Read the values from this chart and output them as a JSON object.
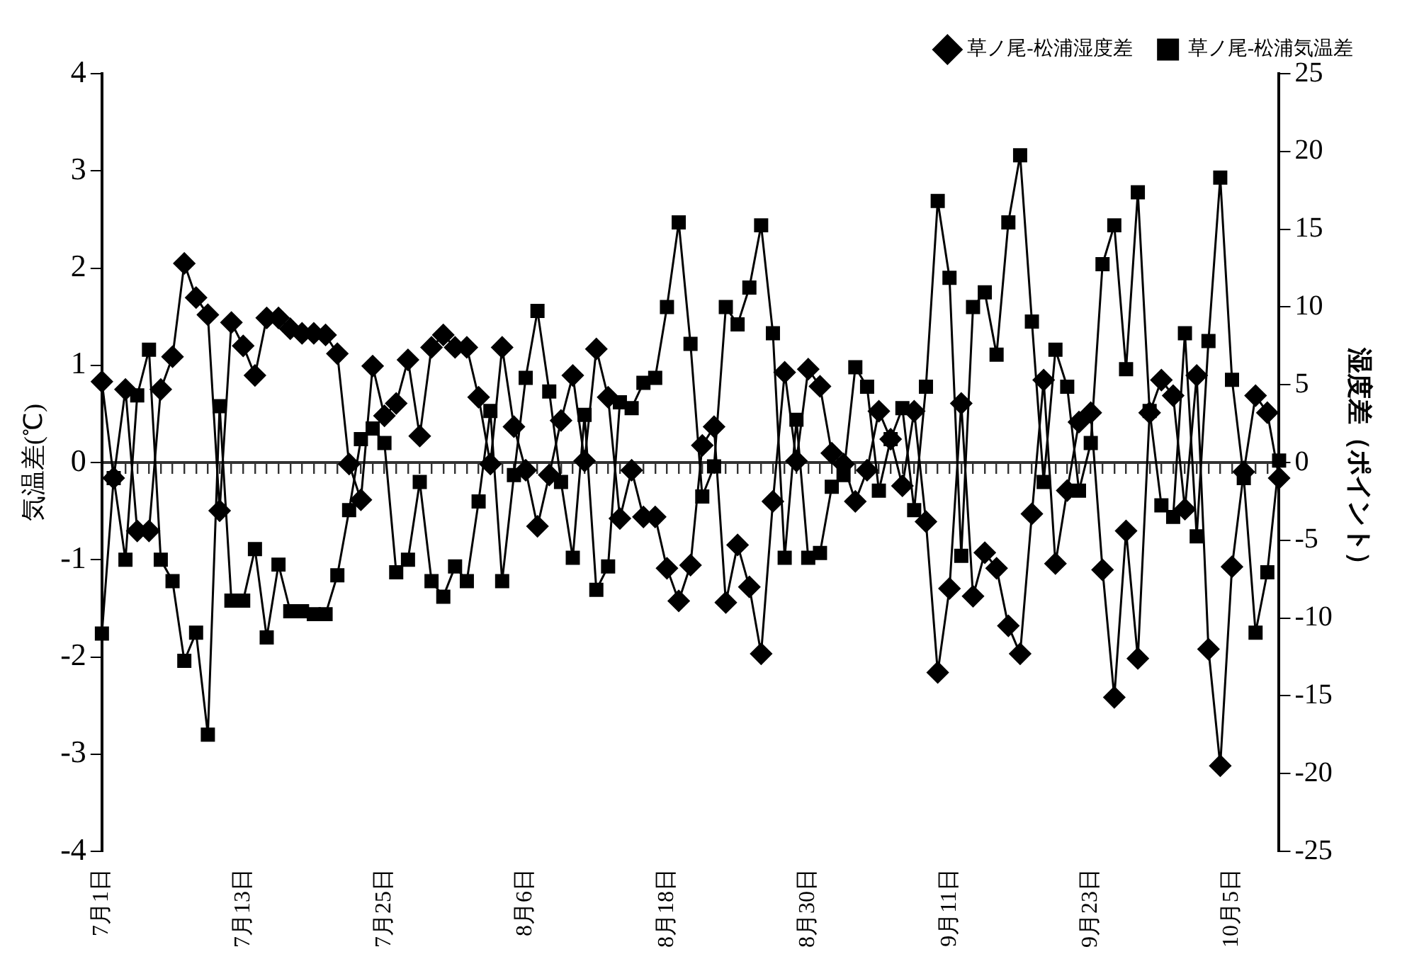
{
  "chart_data": {
    "type": "line",
    "categories": [
      "7月1日",
      null,
      null,
      null,
      null,
      null,
      null,
      null,
      null,
      null,
      null,
      null,
      "7月13日",
      null,
      null,
      null,
      null,
      null,
      null,
      null,
      null,
      null,
      null,
      null,
      "7月25日",
      null,
      null,
      null,
      null,
      null,
      null,
      null,
      null,
      null,
      null,
      null,
      "8月6日",
      null,
      null,
      null,
      null,
      null,
      null,
      null,
      null,
      null,
      null,
      null,
      "8月18日",
      null,
      null,
      null,
      null,
      null,
      null,
      null,
      null,
      null,
      null,
      null,
      "8月30日",
      null,
      null,
      null,
      null,
      null,
      null,
      null,
      null,
      null,
      null,
      null,
      "9月11日",
      null,
      null,
      null,
      null,
      null,
      null,
      null,
      null,
      null,
      null,
      null,
      "9月23日",
      null,
      null,
      null,
      null,
      null,
      null,
      null,
      null,
      null,
      null,
      null,
      "10月5日",
      null,
      null,
      null,
      null
    ],
    "series": [
      {
        "name": "草ノ尾-松浦湿度差",
        "color": "#000000",
        "axis": "y2",
        "marker": "diamond",
        "values": [
          5.2,
          -1.0,
          4.7,
          -4.4,
          -4.4,
          4.7,
          6.8,
          12.8,
          10.6,
          9.5,
          -3.1,
          9.0,
          7.5,
          5.6,
          9.3,
          9.3,
          8.6,
          8.3,
          8.3,
          8.2,
          7.0,
          -0.1,
          -2.4,
          6.2,
          3.0,
          3.8,
          6.6,
          1.7,
          7.4,
          8.2,
          7.4,
          7.4,
          4.2,
          -0.1,
          7.4,
          2.3,
          -0.5,
          -4.1,
          -0.8,
          2.7,
          5.6,
          0.1,
          7.3,
          4.2,
          -3.6,
          -0.5,
          -3.5,
          -3.5,
          -6.8,
          -8.9,
          -6.6,
          1.1,
          2.3,
          -9.0,
          -5.3,
          -8.0,
          -12.3,
          -2.5,
          5.8,
          0.1,
          6.0,
          4.9,
          0.6,
          -0.1,
          -2.5,
          -0.5,
          3.3,
          1.5,
          -1.5,
          3.3,
          -3.8,
          -13.5,
          -8.1,
          3.8,
          -8.6,
          -5.8,
          -6.8,
          -10.5,
          -12.3,
          -3.3,
          5.3,
          -6.5,
          -1.8,
          2.6,
          3.2,
          -6.9,
          -15.1,
          -4.4,
          -12.6,
          3.2,
          5.3,
          4.3,
          -3.0,
          5.6,
          -12.0,
          -19.5,
          -6.7,
          -0.6,
          4.3,
          3.2,
          -1.0
        ]
      },
      {
        "name": "草ノ尾-松浦気温差",
        "color": "#000000",
        "axis": "y",
        "marker": "square",
        "values": [
          -1.76,
          -0.16,
          -1.0,
          0.69,
          1.16,
          -1.0,
          -1.22,
          -2.04,
          -1.75,
          -2.8,
          0.58,
          -1.42,
          -1.42,
          -0.89,
          -1.8,
          -1.05,
          -1.53,
          -1.53,
          -1.56,
          -1.56,
          -1.16,
          -0.49,
          0.24,
          0.35,
          0.2,
          -1.13,
          -1.0,
          -0.2,
          -1.22,
          -1.38,
          -1.07,
          -1.22,
          -0.4,
          0.53,
          -1.22,
          -0.13,
          0.87,
          1.56,
          0.73,
          -0.2,
          -0.98,
          0.49,
          -1.31,
          -1.07,
          0.62,
          0.56,
          0.82,
          0.87,
          1.6,
          2.47,
          1.22,
          -0.35,
          -0.04,
          1.6,
          1.42,
          1.8,
          2.44,
          1.33,
          -0.98,
          0.44,
          -0.98,
          -0.93,
          -0.25,
          -0.13,
          0.98,
          0.78,
          -0.29,
          0.24,
          0.56,
          -0.49,
          0.78,
          2.69,
          1.9,
          -0.96,
          1.6,
          1.75,
          1.11,
          2.47,
          3.16,
          1.45,
          -0.2,
          1.16,
          0.78,
          -0.29,
          0.2,
          2.04,
          2.44,
          0.96,
          2.78,
          0.53,
          -0.44,
          -0.56,
          1.33,
          -0.76,
          1.25,
          2.93,
          0.85,
          -0.16,
          -1.75,
          -1.13,
          0.02
        ]
      }
    ],
    "ylabel": "気温差(℃)",
    "y2label": "湿度差（ポイント）",
    "ylim": [
      -4,
      4
    ],
    "yticks": [
      -4,
      -3,
      -2,
      -1,
      0,
      1,
      2,
      3,
      4
    ],
    "y2lim": [
      -25,
      25
    ],
    "y2ticks": [
      -25,
      -20,
      -15,
      -10,
      -5,
      0,
      5,
      10,
      15,
      20,
      25
    ],
    "legend": "top right"
  }
}
